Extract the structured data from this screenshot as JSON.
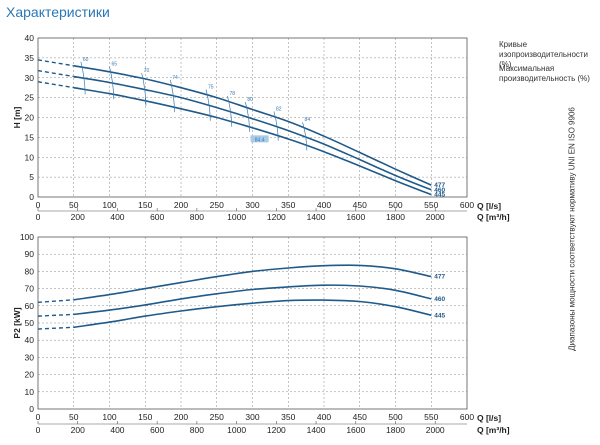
{
  "title": "Характеристики",
  "legend": {
    "iso_curves": "Кривые изопроизводительности (%)",
    "max_eff": "Максимальная производительность (%)"
  },
  "side_note": "Диапазоны мощности соответствуют нормативу UNI EN ISO 9906",
  "colors": {
    "curve": "#1f5a8a",
    "accent": "#2a77b6"
  },
  "chart_data": [
    {
      "type": "line",
      "xlabel": "Q [l/s]",
      "x2label": "Q [m³/h]",
      "ylabel": "H [m]",
      "xlim": [
        0,
        600
      ],
      "ylim": [
        0,
        40
      ],
      "xticks": [
        "0",
        "50",
        "100",
        "150",
        "200",
        "250",
        "300",
        "350",
        "400",
        "450",
        "500",
        "550",
        "600"
      ],
      "x2ticks": [
        "0",
        "200",
        "400",
        "600",
        "800",
        "1000",
        "1200",
        "1400",
        "1600",
        "1800",
        "2000"
      ],
      "yticks": [
        "0",
        "5",
        "10",
        "15",
        "20",
        "25",
        "30",
        "35",
        "40"
      ],
      "grid": true,
      "series": [
        {
          "name": "477",
          "x": [
            0,
            50,
            100,
            150,
            200,
            250,
            300,
            350,
            400,
            450,
            500,
            550
          ],
          "y": [
            34.5,
            33,
            31.5,
            29.7,
            27.5,
            25,
            22,
            19,
            15.3,
            11.2,
            7,
            3
          ]
        },
        {
          "name": "460",
          "x": [
            0,
            50,
            100,
            150,
            200,
            250,
            300,
            350,
            400,
            450,
            500,
            550
          ],
          "y": [
            31.8,
            30.3,
            28.8,
            27,
            25,
            22.5,
            19.7,
            16.7,
            13.3,
            9.4,
            5.4,
            1.8
          ]
        },
        {
          "name": "445",
          "x": [
            0,
            50,
            100,
            150,
            200,
            250,
            300,
            350,
            400,
            450,
            500,
            550
          ],
          "y": [
            29,
            27.5,
            26,
            24.2,
            22.2,
            20,
            17.4,
            14.6,
            11.4,
            7.8,
            4.1,
            0.6
          ]
        }
      ],
      "iso_labels": [
        "60",
        "65",
        "70",
        "74",
        "75",
        "78",
        "80",
        "82",
        "84"
      ],
      "max_eff_label": "84.4"
    },
    {
      "type": "line",
      "xlabel": "Q [l/s]",
      "x2label": "Q [m³/h]",
      "ylabel": "P2 [kW]",
      "xlim": [
        0,
        600
      ],
      "ylim": [
        0,
        100
      ],
      "xticks": [
        "0",
        "50",
        "100",
        "150",
        "200",
        "250",
        "300",
        "350",
        "400",
        "450",
        "500",
        "550",
        "600"
      ],
      "x2ticks": [
        "0",
        "200",
        "400",
        "600",
        "800",
        "1000",
        "1200",
        "1400",
        "1600",
        "1800",
        "2000"
      ],
      "yticks": [
        "0",
        "10",
        "20",
        "30",
        "40",
        "50",
        "60",
        "70",
        "80",
        "90",
        "100"
      ],
      "grid": true,
      "series": [
        {
          "name": "477",
          "x": [
            0,
            50,
            100,
            150,
            200,
            250,
            300,
            350,
            400,
            450,
            500,
            550
          ],
          "y": [
            62,
            63.5,
            66.5,
            70,
            73.5,
            77,
            80,
            82,
            83.3,
            83.5,
            81.5,
            77
          ]
        },
        {
          "name": "460",
          "x": [
            0,
            50,
            100,
            150,
            200,
            250,
            300,
            350,
            400,
            450,
            500,
            550
          ],
          "y": [
            54,
            55,
            57.5,
            60.5,
            64,
            67,
            69.5,
            71,
            72,
            71.5,
            69,
            64
          ]
        },
        {
          "name": "445",
          "x": [
            0,
            50,
            100,
            150,
            200,
            250,
            300,
            350,
            400,
            450,
            500,
            550
          ],
          "y": [
            46.5,
            47.5,
            50.5,
            54,
            57,
            59.5,
            61.5,
            63,
            63.3,
            62.5,
            59.5,
            54.5
          ]
        }
      ]
    }
  ]
}
